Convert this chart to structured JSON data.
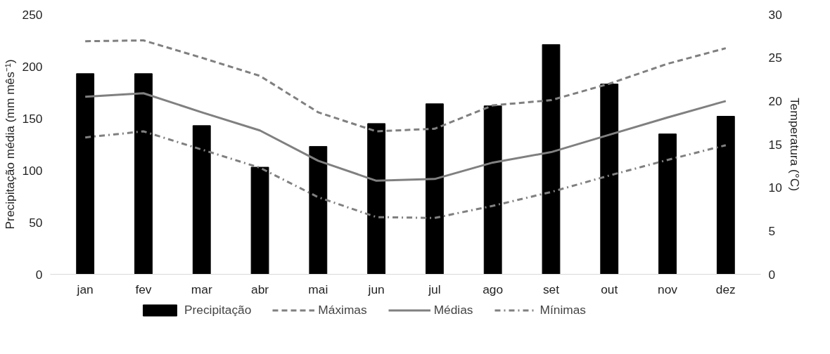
{
  "chart_data": {
    "type": "bar",
    "categories": [
      "jan",
      "fev",
      "mar",
      "abr",
      "mai",
      "jun",
      "jul",
      "ago",
      "set",
      "out",
      "nov",
      "dez"
    ],
    "ylabel": "Precipitação média (mm mês⁻¹)",
    "y2label": "Temperatura (°C)",
    "ylim": [
      0,
      250
    ],
    "yticks": [
      0,
      50,
      100,
      150,
      200,
      250
    ],
    "y2lim": [
      0,
      30
    ],
    "y2ticks": [
      0,
      5,
      10,
      15,
      20,
      25,
      30
    ],
    "legend": "bottom",
    "series": [
      {
        "name": "Precipitação",
        "color": "#000000",
        "values": [
          193,
          193,
          143,
          103,
          123,
          145,
          164,
          162,
          221,
          183,
          135,
          152
        ]
      },
      {
        "name": "Máximas",
        "type": "line",
        "axis": "y2",
        "color": "#808080",
        "line_style": "dashed",
        "values": [
          26.9,
          27.0,
          25.0,
          22.9,
          18.7,
          16.5,
          16.8,
          19.5,
          20.1,
          22.0,
          24.3,
          26.1
        ]
      },
      {
        "name": "Médias",
        "type": "line",
        "axis": "y2",
        "color": "#808080",
        "line_style": "solid",
        "values": [
          20.5,
          20.9,
          18.7,
          16.6,
          13.1,
          10.8,
          11.0,
          12.9,
          14.1,
          16.1,
          18.1,
          20.0
        ]
      },
      {
        "name": "Mínimas",
        "type": "line",
        "axis": "y2",
        "color": "#808080",
        "line_style": "dashdot",
        "values": [
          15.8,
          16.5,
          14.4,
          12.3,
          8.9,
          6.6,
          6.5,
          7.9,
          9.5,
          11.4,
          13.2,
          14.9
        ]
      }
    ]
  }
}
